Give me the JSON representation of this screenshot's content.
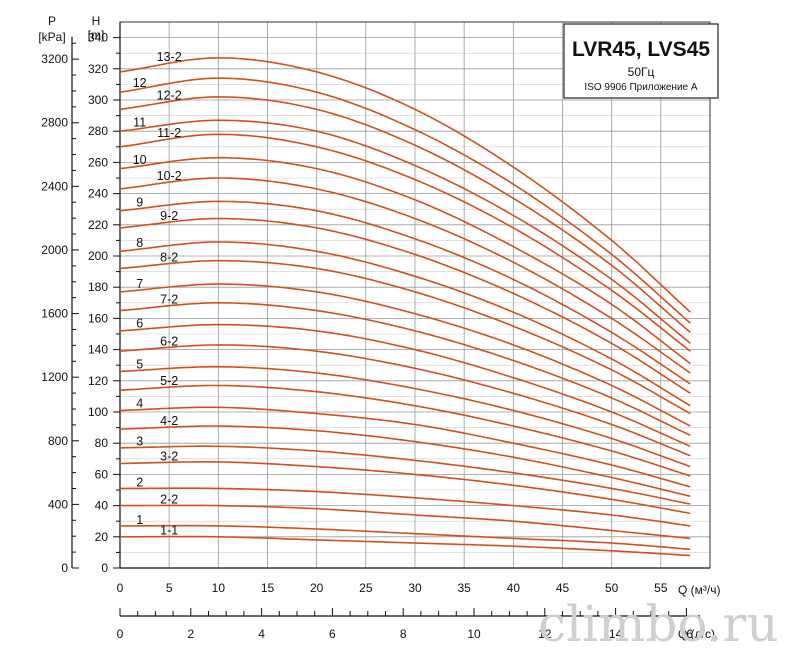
{
  "chart_data": {
    "type": "line",
    "title": "LVR45, LVS45",
    "subtitle": "50Гц",
    "note": "ISO 9906 Приложение A",
    "watermark": "climbo.ru",
    "axes": {
      "x_label": "Q (м³/ч)",
      "x2_label": "Q (л/с)",
      "y_label": "H",
      "y_unit": "[m]",
      "y2_label": "P",
      "y2_unit": "[kPa]",
      "xlim": [
        0,
        60
      ],
      "ylim": [
        0,
        350
      ],
      "x_ticks": [
        0,
        5,
        10,
        15,
        20,
        25,
        30,
        35,
        40,
        45,
        50,
        55
      ],
      "x2_ticks": [
        0,
        2,
        4,
        6,
        8,
        10,
        12,
        14,
        16
      ],
      "y_ticks": [
        0,
        20,
        40,
        60,
        80,
        100,
        120,
        140,
        160,
        180,
        200,
        220,
        240,
        260,
        280,
        300,
        320,
        340
      ],
      "y2_ticks": [
        0,
        400,
        800,
        1200,
        1600,
        2000,
        2400,
        2800,
        3200
      ],
      "grid": true
    },
    "curve_color": "#d2501e",
    "series": [
      {
        "name": "1-1",
        "x": [
          0,
          10,
          20,
          30,
          40,
          50,
          58
        ],
        "y": [
          20,
          20,
          18,
          16,
          14,
          11,
          8
        ]
      },
      {
        "name": "1",
        "x": [
          0,
          10,
          20,
          30,
          40,
          50,
          58
        ],
        "y": [
          27,
          27,
          25,
          22,
          19,
          16,
          12
        ]
      },
      {
        "name": "2-2",
        "x": [
          0,
          10,
          20,
          30,
          40,
          50,
          58
        ],
        "y": [
          40,
          40,
          38,
          34,
          30,
          24,
          19
        ]
      },
      {
        "name": "2",
        "x": [
          0,
          10,
          20,
          30,
          40,
          50,
          58
        ],
        "y": [
          51,
          51,
          49,
          45,
          40,
          34,
          27
        ]
      },
      {
        "name": "3-2",
        "x": [
          0,
          10,
          20,
          30,
          40,
          50,
          58
        ],
        "y": [
          67,
          68,
          65,
          60,
          53,
          44,
          35
        ]
      },
      {
        "name": "3",
        "x": [
          0,
          10,
          20,
          30,
          40,
          50,
          58
        ],
        "y": [
          77,
          78,
          75,
          69,
          61,
          51,
          41
        ]
      },
      {
        "name": "4-2",
        "x": [
          0,
          10,
          20,
          30,
          40,
          50,
          58
        ],
        "y": [
          89,
          91,
          88,
          81,
          71,
          58,
          46
        ]
      },
      {
        "name": "4",
        "x": [
          0,
          10,
          20,
          30,
          40,
          50,
          58
        ],
        "y": [
          101,
          103,
          99,
          92,
          80,
          66,
          52
        ]
      },
      {
        "name": "5-2",
        "x": [
          0,
          10,
          20,
          30,
          40,
          50,
          58
        ],
        "y": [
          114,
          117,
          113,
          104,
          91,
          75,
          59
        ]
      },
      {
        "name": "5",
        "x": [
          0,
          10,
          20,
          30,
          40,
          50,
          58
        ],
        "y": [
          126,
          129,
          125,
          115,
          101,
          83,
          65
        ]
      },
      {
        "name": "6-2",
        "x": [
          0,
          10,
          20,
          30,
          40,
          50,
          58
        ],
        "y": [
          139,
          143,
          139,
          128,
          112,
          92,
          72
        ]
      },
      {
        "name": "6",
        "x": [
          0,
          10,
          20,
          30,
          40,
          50,
          58
        ],
        "y": [
          152,
          156,
          152,
          140,
          122,
          100,
          78
        ]
      },
      {
        "name": "7-2",
        "x": [
          0,
          10,
          20,
          30,
          40,
          50,
          58
        ],
        "y": [
          165,
          170,
          165,
          152,
          133,
          109,
          85
        ]
      },
      {
        "name": "7",
        "x": [
          0,
          10,
          20,
          30,
          40,
          50,
          58
        ],
        "y": [
          177,
          182,
          177,
          163,
          143,
          117,
          91
        ]
      },
      {
        "name": "8-2",
        "x": [
          0,
          10,
          20,
          30,
          40,
          50,
          58
        ],
        "y": [
          192,
          197,
          192,
          177,
          155,
          127,
          99
        ]
      },
      {
        "name": "8",
        "x": [
          0,
          10,
          20,
          30,
          40,
          50,
          58
        ],
        "y": [
          203,
          209,
          203,
          187,
          164,
          134,
          104
        ]
      },
      {
        "name": "9-2",
        "x": [
          0,
          10,
          20,
          30,
          40,
          50,
          58
        ],
        "y": [
          218,
          224,
          218,
          201,
          176,
          144,
          112
        ]
      },
      {
        "name": "9",
        "x": [
          0,
          10,
          20,
          30,
          40,
          50,
          58
        ],
        "y": [
          229,
          235,
          229,
          211,
          185,
          151,
          118
        ]
      },
      {
        "name": "10-2",
        "x": [
          0,
          10,
          20,
          30,
          40,
          50,
          58
        ],
        "y": [
          243,
          250,
          243,
          224,
          196,
          160,
          125
        ]
      },
      {
        "name": "10",
        "x": [
          0,
          10,
          20,
          30,
          40,
          50,
          58
        ],
        "y": [
          256,
          263,
          256,
          236,
          206,
          169,
          131
        ]
      },
      {
        "name": "11-2",
        "x": [
          0,
          10,
          20,
          30,
          40,
          50,
          58
        ],
        "y": [
          270,
          278,
          270,
          249,
          218,
          178,
          139
        ]
      },
      {
        "name": "11",
        "x": [
          0,
          10,
          20,
          30,
          40,
          50,
          58
        ],
        "y": [
          280,
          287,
          280,
          258,
          226,
          185,
          144
        ]
      },
      {
        "name": "12-2",
        "x": [
          0,
          10,
          20,
          30,
          40,
          50,
          58
        ],
        "y": [
          294,
          302,
          294,
          271,
          237,
          194,
          151
        ]
      },
      {
        "name": "12",
        "x": [
          0,
          10,
          20,
          30,
          40,
          50,
          58
        ],
        "y": [
          305,
          314,
          305,
          281,
          246,
          201,
          157
        ]
      },
      {
        "name": "13-2",
        "x": [
          0,
          10,
          20,
          30,
          40,
          50,
          58
        ],
        "y": [
          318,
          327,
          318,
          294,
          257,
          210,
          164
        ]
      }
    ]
  }
}
